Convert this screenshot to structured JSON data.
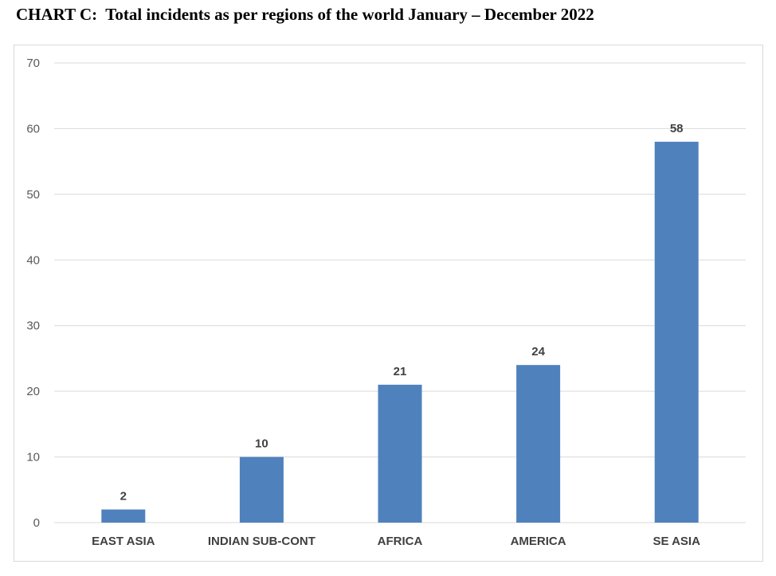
{
  "chart_data": {
    "type": "bar",
    "title": "CHART C:  Total incidents as per regions of the world January – December 2022",
    "categories": [
      "EAST ASIA",
      "INDIAN SUB-CONT",
      "AFRICA",
      "AMERICA",
      "SE ASIA"
    ],
    "values": [
      2,
      10,
      21,
      24,
      58
    ],
    "ylim": [
      0,
      70
    ],
    "yticks": [
      0,
      10,
      20,
      30,
      40,
      50,
      60,
      70
    ],
    "grid": true,
    "bar_color": "#4f81bd",
    "grid_color": "#d9d9d9",
    "show_data_labels": true
  }
}
